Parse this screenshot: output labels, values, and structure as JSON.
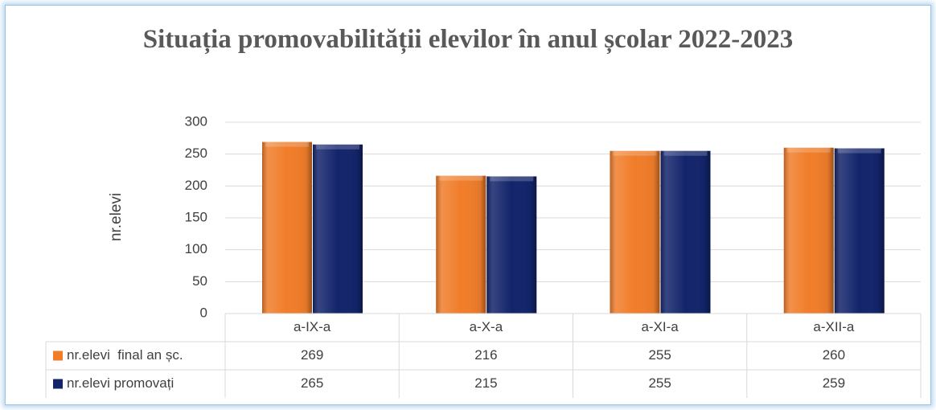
{
  "chart_data": {
    "type": "bar",
    "title": "Situația promovabilității elevilor în anul școlar 2022-2023",
    "y_label": "nr.elevi",
    "categories": [
      "a-IX-a",
      "a-X-a",
      "a-XI-a",
      "a-XII-a"
    ],
    "series": [
      {
        "name": "nr.elevi  final an șc.",
        "color": "#f07d2a",
        "values": [
          269,
          216,
          255,
          260
        ]
      },
      {
        "name": "nr.elevi promovați",
        "color": "#13246b",
        "values": [
          265,
          215,
          255,
          259
        ]
      }
    ],
    "ylim": [
      0,
      300
    ],
    "yticks": [
      0,
      50,
      100,
      150,
      200,
      250,
      300
    ],
    "grid": true,
    "data_table": true
  }
}
